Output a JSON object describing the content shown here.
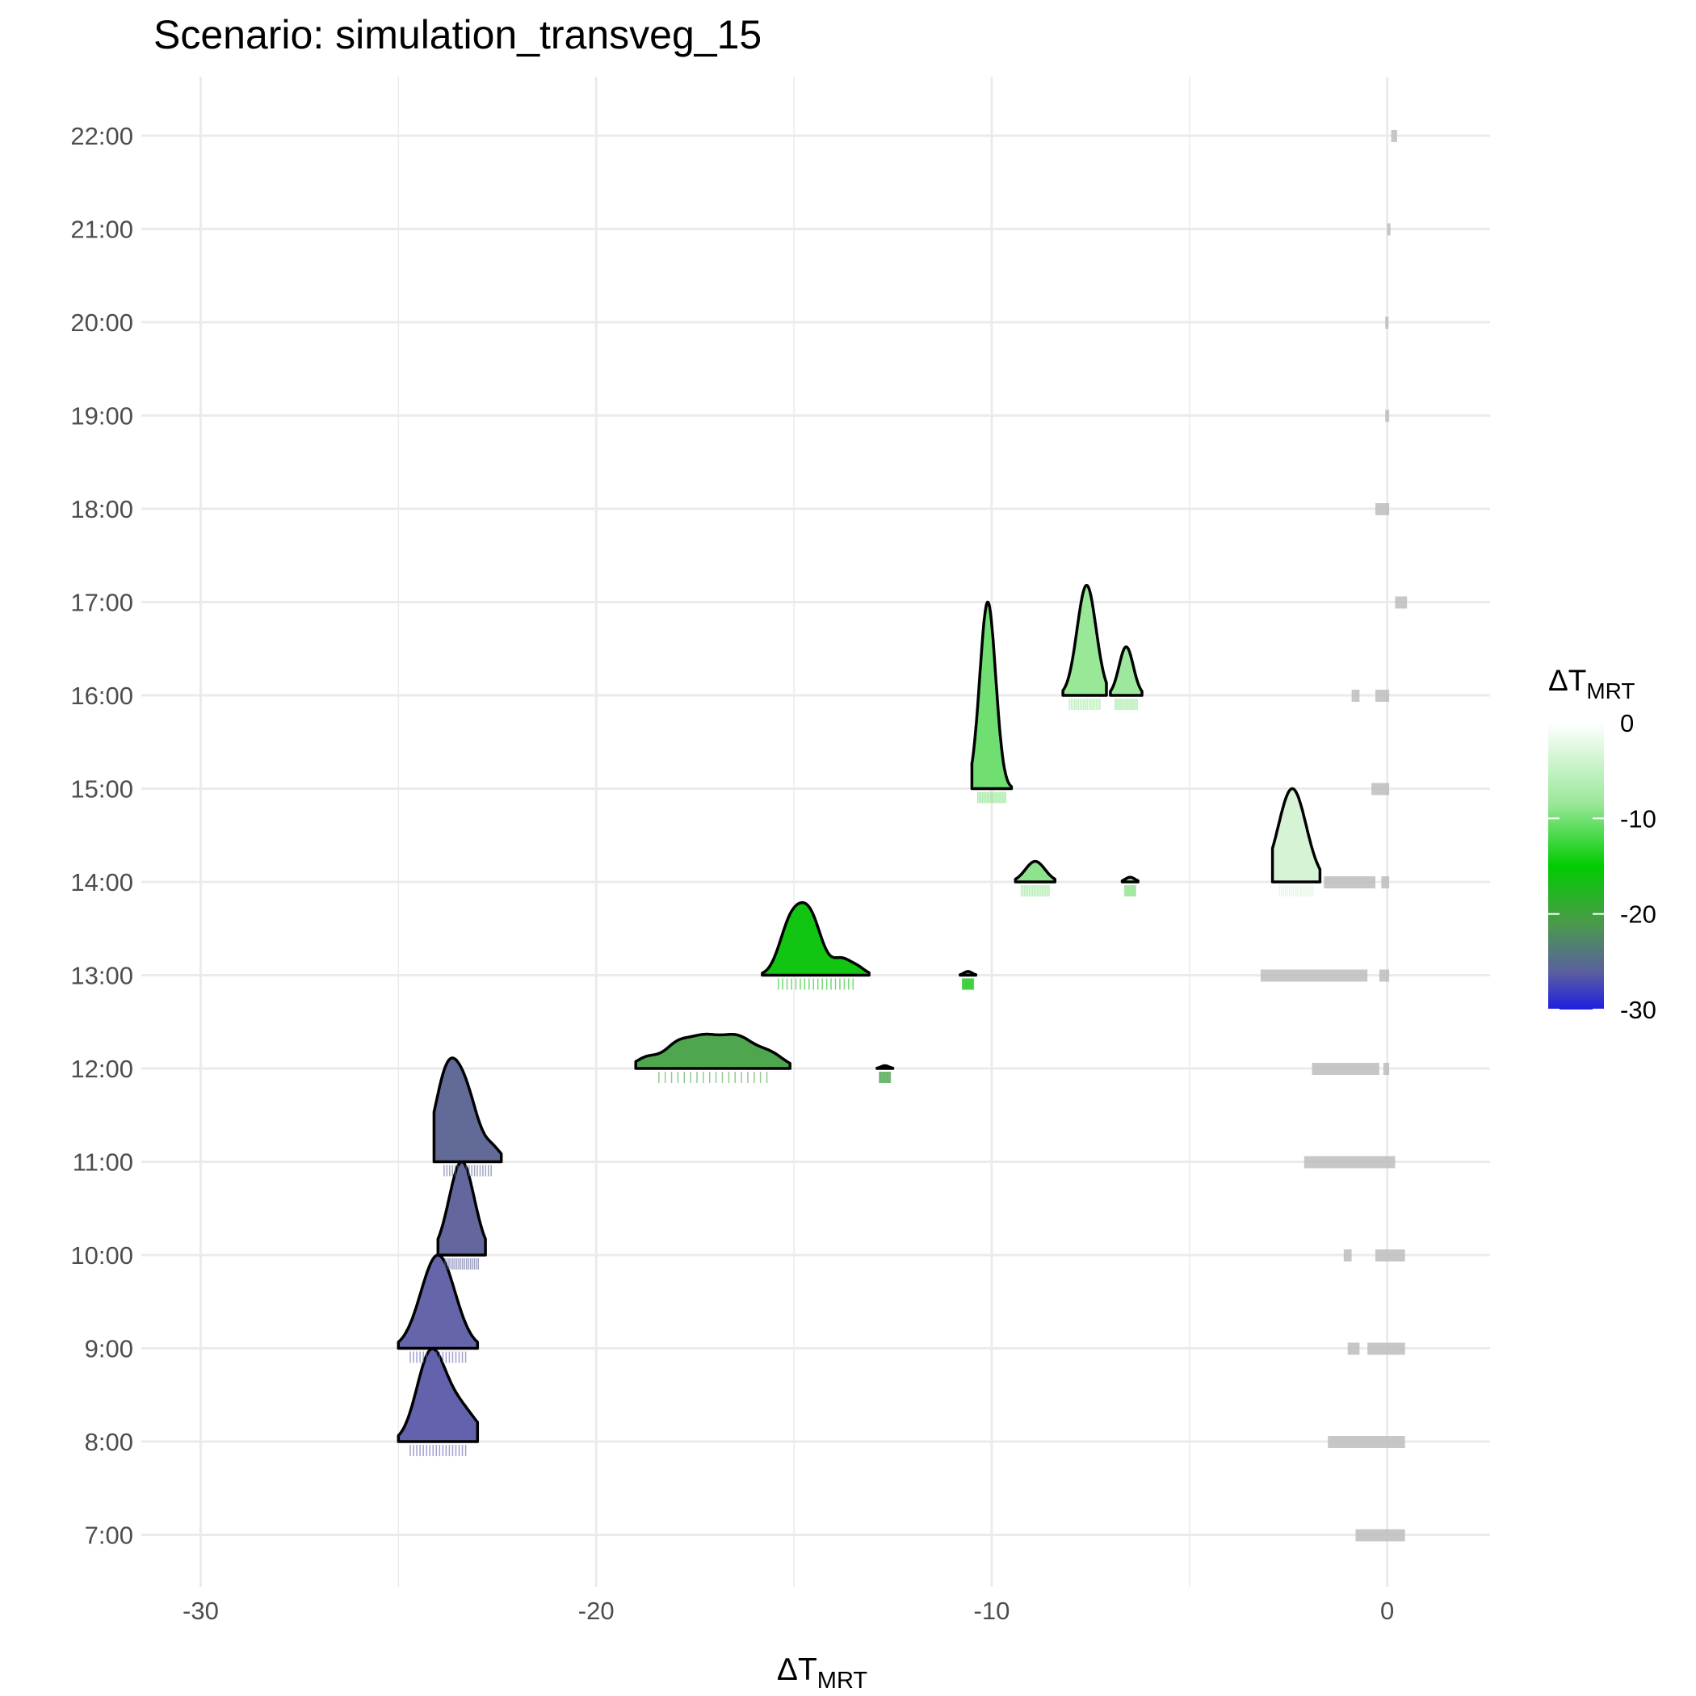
{
  "chart_data": {
    "type": "ridgeline",
    "title": "Scenario: simulation_transveg_15",
    "xlabel": {
      "main": "ΔT",
      "sub": "MRT"
    },
    "ylabel": "",
    "xlim": [
      -31.5,
      2.6
    ],
    "x_ticks": [
      -30,
      -20,
      -10,
      0
    ],
    "x_ticklabels": [
      "-30",
      "-20",
      "-10",
      "0"
    ],
    "x_minor_gridlines": [
      -25,
      -15,
      -5
    ],
    "categories": [
      "7:00",
      "8:00",
      "9:00",
      "10:00",
      "11:00",
      "12:00",
      "13:00",
      "14:00",
      "15:00",
      "16:00",
      "17:00",
      "18:00",
      "19:00",
      "20:00",
      "21:00",
      "22:00"
    ],
    "colors": {
      "low": "#1f1fe0",
      "mid_low": "#5a6aa0",
      "mid": "#3a9a3a",
      "mid_high": "#00cc00",
      "high": "#ffffff",
      "outline": "#000000",
      "rug_grey": "#bdbdbd",
      "grid": "#ebebeb"
    },
    "legend": {
      "title_main": "ΔT",
      "title_sub": "MRT",
      "labels": [
        "0",
        "-10",
        "-20",
        "-30"
      ],
      "values": [
        0,
        -10,
        -20,
        -30
      ],
      "position": "right"
    },
    "densities": [
      {
        "hour": "8:00",
        "fill": "#6262ad",
        "peaks": [
          [
            -24.2,
            0.35,
            0.87
          ],
          [
            -23.5,
            0.45,
            0.38
          ]
        ],
        "range": [
          -25.0,
          -23.0
        ]
      },
      {
        "hour": "9:00",
        "fill": "#6565ab",
        "peaks": [
          [
            -24.0,
            0.43,
            1.0
          ]
        ],
        "range": [
          -25.0,
          -23.0
        ]
      },
      {
        "hour": "10:00",
        "fill": "#64679e",
        "peaks": [
          [
            -23.4,
            0.32,
            1.0
          ]
        ],
        "range": [
          -24.0,
          -22.8
        ]
      },
      {
        "hour": "11:00",
        "fill": "#626a97",
        "peaks": [
          [
            -23.8,
            0.3,
            0.83
          ],
          [
            -23.3,
            0.32,
            0.69
          ],
          [
            -22.6,
            0.2,
            0.12
          ]
        ],
        "range": [
          -24.1,
          -22.4
        ]
      },
      {
        "hour": "12:00",
        "fill": "#4ea64e",
        "peaks": [
          [
            -18.7,
            0.3,
            0.12
          ],
          [
            -18.0,
            0.3,
            0.18
          ],
          [
            -17.3,
            0.45,
            0.33
          ],
          [
            -16.4,
            0.4,
            0.3
          ],
          [
            -15.6,
            0.35,
            0.15
          ]
        ],
        "range": [
          -19.0,
          -15.1
        ]
      },
      {
        "hour": "12:00",
        "fill": "#4ea64e",
        "peaks": [
          [
            -12.7,
            0.1,
            0.03
          ]
        ],
        "range": [
          -12.9,
          -12.5
        ]
      },
      {
        "hour": "13:00",
        "fill": "#12c512",
        "peaks": [
          [
            -15.1,
            0.28,
            0.5
          ],
          [
            -14.6,
            0.3,
            0.62
          ],
          [
            -13.8,
            0.22,
            0.16
          ],
          [
            -13.4,
            0.2,
            0.08
          ]
        ],
        "range": [
          -15.8,
          -13.1
        ]
      },
      {
        "hour": "13:00",
        "fill": "#12c512",
        "peaks": [
          [
            -10.6,
            0.1,
            0.04
          ]
        ],
        "range": [
          -10.8,
          -10.4
        ]
      },
      {
        "hour": "14:00",
        "fill": "#8ee38e",
        "peaks": [
          [
            -8.9,
            0.25,
            0.22
          ]
        ],
        "range": [
          -9.4,
          -8.4
        ]
      },
      {
        "hour": "14:00",
        "fill": "#8ee38e",
        "peaks": [
          [
            -6.5,
            0.12,
            0.05
          ]
        ],
        "range": [
          -6.7,
          -6.3
        ]
      },
      {
        "hour": "14:00",
        "fill": "#d6f3d6",
        "peaks": [
          [
            -2.4,
            0.35,
            1.0
          ]
        ],
        "range": [
          -2.9,
          -1.7
        ]
      },
      {
        "hour": "15:00",
        "fill": "#70de70",
        "peaks": [
          [
            -10.1,
            0.2,
            2.0
          ]
        ],
        "range": [
          -10.5,
          -9.5
        ]
      },
      {
        "hour": "16:00",
        "fill": "#98e898",
        "peaks": [
          [
            -7.6,
            0.24,
            1.18
          ]
        ],
        "range": [
          -8.2,
          -7.1
        ]
      },
      {
        "hour": "16:00",
        "fill": "#9ee89e",
        "peaks": [
          [
            -6.6,
            0.18,
            0.52
          ]
        ],
        "range": [
          -7.0,
          -6.2
        ]
      },
      {
        "hour": "17:00",
        "fill": "none",
        "peaks": [],
        "range": [
          0.2,
          0.5
        ]
      }
    ],
    "rugs": [
      {
        "hour": "7:00",
        "ranges": [
          [
            -0.8,
            0.45
          ]
        ]
      },
      {
        "hour": "8:00",
        "ranges": [
          [
            -1.5,
            0.45
          ]
        ]
      },
      {
        "hour": "9:00",
        "ranges": [
          [
            -1.0,
            -0.7
          ],
          [
            -0.5,
            0.45
          ]
        ]
      },
      {
        "hour": "10:00",
        "ranges": [
          [
            -1.1,
            -0.9
          ],
          [
            -0.3,
            0.45
          ]
        ]
      },
      {
        "hour": "11:00",
        "ranges": [
          [
            -2.1,
            0.2
          ]
        ]
      },
      {
        "hour": "12:00",
        "ranges": [
          [
            -1.9,
            -0.2
          ],
          [
            -0.1,
            0.05
          ]
        ]
      },
      {
        "hour": "13:00",
        "ranges": [
          [
            -3.2,
            -0.5
          ],
          [
            -0.2,
            0.05
          ]
        ]
      },
      {
        "hour": "14:00",
        "ranges": [
          [
            -1.6,
            -0.3
          ],
          [
            -0.15,
            0.05
          ]
        ]
      },
      {
        "hour": "15:00",
        "ranges": [
          [
            -0.4,
            0.05
          ]
        ]
      },
      {
        "hour": "16:00",
        "ranges": [
          [
            -0.9,
            -0.7
          ],
          [
            -0.3,
            0.05
          ]
        ]
      },
      {
        "hour": "17:00",
        "ranges": [
          [
            0.2,
            0.5
          ]
        ]
      },
      {
        "hour": "18:00",
        "ranges": [
          [
            -0.3,
            0.05
          ]
        ]
      },
      {
        "hour": "19:00",
        "ranges": [
          [
            -0.05,
            0.05
          ]
        ]
      },
      {
        "hour": "20:00",
        "ranges": [
          [
            -0.05,
            0.03
          ]
        ]
      },
      {
        "hour": "21:00",
        "ranges": [
          [
            0.0,
            0.08
          ]
        ]
      },
      {
        "hour": "22:00",
        "ranges": [
          [
            0.1,
            0.25
          ]
        ]
      }
    ]
  }
}
